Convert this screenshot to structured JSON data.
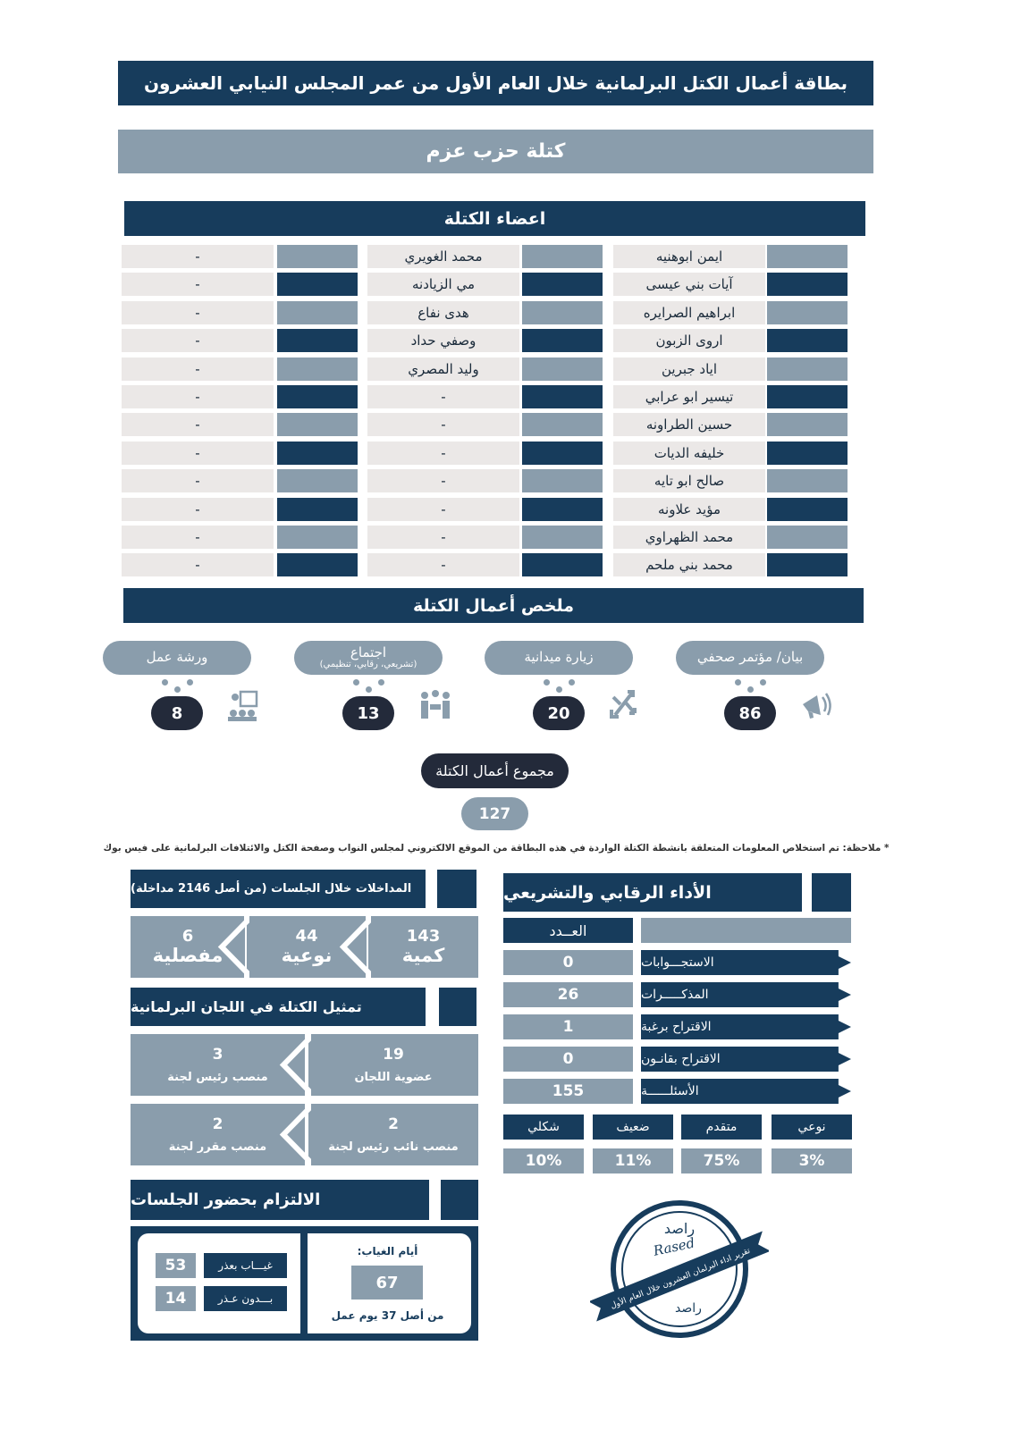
{
  "title": "بطاقة أعمال الكتل البرلمانية خلال العام الأول من عمر المجلس النيابي العشرون",
  "bloc_name": "كتلة حزب عزم",
  "members": {
    "header": "اعضاء الكتلة",
    "col1": [
      "ايمن ابوهنيه",
      "آيات بني عيسى",
      "ابراهيم الصرايره",
      "اروى الزبون",
      "اياد جبرين",
      "تيسير ابو عرابي",
      "حسين الطراونه",
      "خليفه الديات",
      "صالح ابو تايه",
      "مؤيد علاونه",
      "محمد الظهراوي",
      "محمد بني ملحم"
    ],
    "col2": [
      "محمد الغويري",
      "مي الزيادنه",
      "هدى نفاع",
      "وصفي حداد",
      "وليد المصري",
      "-",
      "-",
      "-",
      "-",
      "-",
      "-",
      "-"
    ],
    "col3": [
      "-",
      "-",
      "-",
      "-",
      "-",
      "-",
      "-",
      "-",
      "-",
      "-",
      "-",
      "-"
    ]
  },
  "summary": {
    "header": "ملخص أعمال الكتلة",
    "items": [
      {
        "label": "بيان/ مؤتمر صحفي",
        "sub": "",
        "value": "86",
        "icon": "megaphone-icon"
      },
      {
        "label": "زيارة ميدانية",
        "sub": "",
        "value": "20",
        "icon": "arrows-icon"
      },
      {
        "label": "اجتماع",
        "sub": "(تشريعي، رقابي، تنظيمي)",
        "value": "13",
        "icon": "meeting-icon"
      },
      {
        "label": "ورشة عمل",
        "sub": "",
        "value": "8",
        "icon": "workshop-icon"
      }
    ],
    "total_label": "مجموع أعمال الكتلة",
    "total_value": "127"
  },
  "note": "* ملاحظة: تم استخلاص المعلومات المتعلقة بانشطة الكتلة الواردة في هذه البطاقة من الموقع الالكتروني لمجلس النواب وصفحة الكتل والائتلافات البرلمانية على فيس بوك",
  "interventions": {
    "header": "المداخلات خلال الجلسات (من أصل 2146 مداخلة)",
    "items": [
      {
        "value": "143",
        "label": "كمية"
      },
      {
        "value": "44",
        "label": "نوعية"
      },
      {
        "value": "6",
        "label": "مفصلية"
      }
    ]
  },
  "committees": {
    "header": "تمثيل الكتلة في اللجان البرلمانية",
    "items": [
      {
        "value": "19",
        "label": "عضوية اللجان"
      },
      {
        "value": "3",
        "label": "منصب رئيس لجنة"
      },
      {
        "value": "2",
        "label": "منصب نائب رئيس لجنة"
      },
      {
        "value": "2",
        "label": "منصب مقرر لجنة"
      }
    ]
  },
  "attendance": {
    "header": "الالتزام بحضور الجلسات",
    "absence_label": "أيام الغياب:",
    "absence_value": "67",
    "out_of": "من أصل 37 يوم عمل",
    "excused_label": "غيـــاب بعذر",
    "excused_value": "53",
    "unexcused_label": "بـــدون عـذر",
    "unexcused_value": "14"
  },
  "performance": {
    "header": "الأداء الرقابي والتشريعي",
    "count_header": "العــدد",
    "rows": [
      {
        "label": "الاستجـــوابات",
        "value": "0"
      },
      {
        "label": "المذكـــــرات",
        "value": "26"
      },
      {
        "label": "الاقتراح برغبة",
        "value": "1"
      },
      {
        "label": "الاقتراح بقانـون",
        "value": "0"
      },
      {
        "label": "الأسئلــــــة",
        "value": "155"
      }
    ],
    "ratings": [
      {
        "label": "نوعي",
        "value": "3%"
      },
      {
        "label": "متقدم",
        "value": "75%"
      },
      {
        "label": "ضعيف",
        "value": "11%"
      },
      {
        "label": "شكلي",
        "value": "10%"
      }
    ]
  },
  "stamp": {
    "ar": "راصد",
    "en": "Rased",
    "ribbon": "تقرير اداء البرلمان العشرون خلال العام الأول"
  },
  "colors": {
    "navy": "#173c5c",
    "grey": "#8a9dac",
    "light": "#ebe8e7",
    "dark": "#232a3a"
  }
}
